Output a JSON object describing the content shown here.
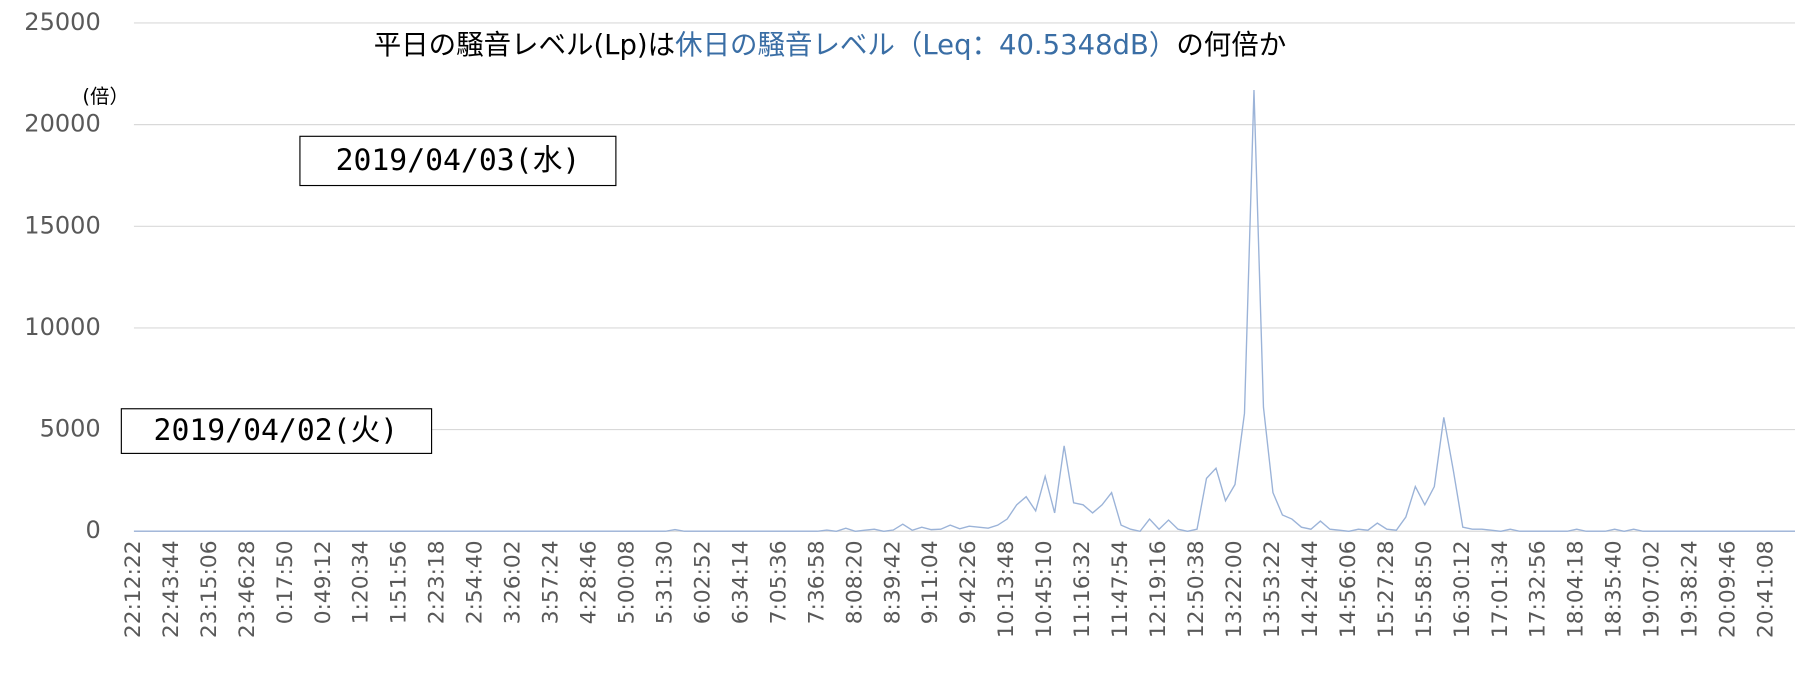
{
  "chart_data": {
    "type": "line",
    "title_parts": [
      "平日の騒音レベル(Lp)は",
      "休日の騒音レベル（Leq：40.5348dB）",
      "の何倍か"
    ],
    "y_unit": "(倍）",
    "annotations": [
      "2019/04/03(水)",
      "2019/04/02(火)"
    ],
    "color": "#9bb3d8",
    "ylim": [
      0,
      25000
    ],
    "yticks": [
      0,
      5000,
      10000,
      15000,
      20000,
      25000
    ],
    "grid": true,
    "categories": [
      "22:12:22",
      null,
      null,
      null,
      "22:43:44",
      null,
      null,
      null,
      "23:15:06",
      null,
      null,
      null,
      "23:46:28",
      null,
      null,
      null,
      "0:17:50",
      null,
      null,
      null,
      "0:49:12",
      null,
      null,
      null,
      "1:20:34",
      null,
      null,
      null,
      "1:51:56",
      null,
      null,
      null,
      "2:23:18",
      null,
      null,
      null,
      "2:54:40",
      null,
      null,
      null,
      "3:26:02",
      null,
      null,
      null,
      "3:57:24",
      null,
      null,
      null,
      "4:28:46",
      null,
      null,
      null,
      "5:00:08",
      null,
      null,
      null,
      "5:31:30",
      null,
      null,
      null,
      "6:02:52",
      null,
      null,
      null,
      "6:34:14",
      null,
      null,
      null,
      "7:05:36",
      null,
      null,
      null,
      "7:36:58",
      null,
      null,
      null,
      "8:08:20",
      null,
      null,
      null,
      "8:39:42",
      null,
      null,
      null,
      "9:11:04",
      null,
      null,
      null,
      "9:42:26",
      null,
      null,
      null,
      "10:13:48",
      null,
      null,
      null,
      "10:45:10",
      null,
      null,
      null,
      "11:16:32",
      null,
      null,
      null,
      "11:47:54",
      null,
      null,
      null,
      "12:19:16",
      null,
      null,
      null,
      "12:50:38",
      null,
      null,
      null,
      "13:22:00",
      null,
      null,
      null,
      "13:53:22",
      null,
      null,
      null,
      "14:24:44",
      null,
      null,
      null,
      "14:56:06",
      null,
      null,
      null,
      "15:27:28",
      null,
      null,
      null,
      "15:58:50",
      null,
      null,
      null,
      "16:30:12",
      null,
      null,
      null,
      "17:01:34",
      null,
      null,
      null,
      "17:32:56",
      null,
      null,
      null,
      "18:04:18",
      null,
      null,
      null,
      "18:35:40",
      null,
      null,
      null,
      "19:07:02",
      null,
      null,
      null,
      "19:38:24",
      null,
      null,
      null,
      "20:09:46",
      null,
      null,
      null,
      "20:41:08",
      null,
      null,
      null
    ],
    "values": [
      0,
      0,
      0,
      0,
      0,
      0,
      0,
      0,
      0,
      0,
      0,
      0,
      0,
      0,
      0,
      0,
      0,
      0,
      0,
      0,
      0,
      0,
      0,
      0,
      0,
      0,
      0,
      0,
      0,
      0,
      0,
      0,
      0,
      0,
      0,
      0,
      0,
      0,
      0,
      0,
      0,
      0,
      0,
      0,
      0,
      0,
      0,
      0,
      0,
      0,
      0,
      0,
      0,
      0,
      0,
      0,
      0,
      80,
      0,
      0,
      0,
      0,
      0,
      0,
      0,
      0,
      0,
      0,
      0,
      0,
      0,
      0,
      0,
      60,
      0,
      150,
      0,
      50,
      100,
      0,
      60,
      350,
      50,
      200,
      80,
      100,
      300,
      120,
      250,
      200,
      150,
      300,
      600,
      1300,
      1700,
      1000,
      2700,
      900,
      4200,
      1400,
      1300,
      900,
      1300,
      1900,
      300,
      100,
      0,
      600,
      100,
      550,
      100,
      0,
      100,
      2600,
      3100,
      1500,
      2300,
      5800,
      21700,
      6100,
      1900,
      800,
      600,
      200,
      100,
      500,
      100,
      50,
      0,
      100,
      50,
      400,
      100,
      50,
      700,
      2200,
      1300,
      2200,
      5600,
      3000,
      200,
      100,
      100,
      50,
      0,
      100,
      0,
      0,
      0,
      0,
      0,
      0,
      100,
      0,
      0,
      0,
      100,
      0,
      100,
      0,
      0,
      0,
      0,
      0,
      0,
      0,
      0,
      0,
      0,
      0,
      0,
      0,
      0,
      0,
      0,
      0
    ]
  }
}
